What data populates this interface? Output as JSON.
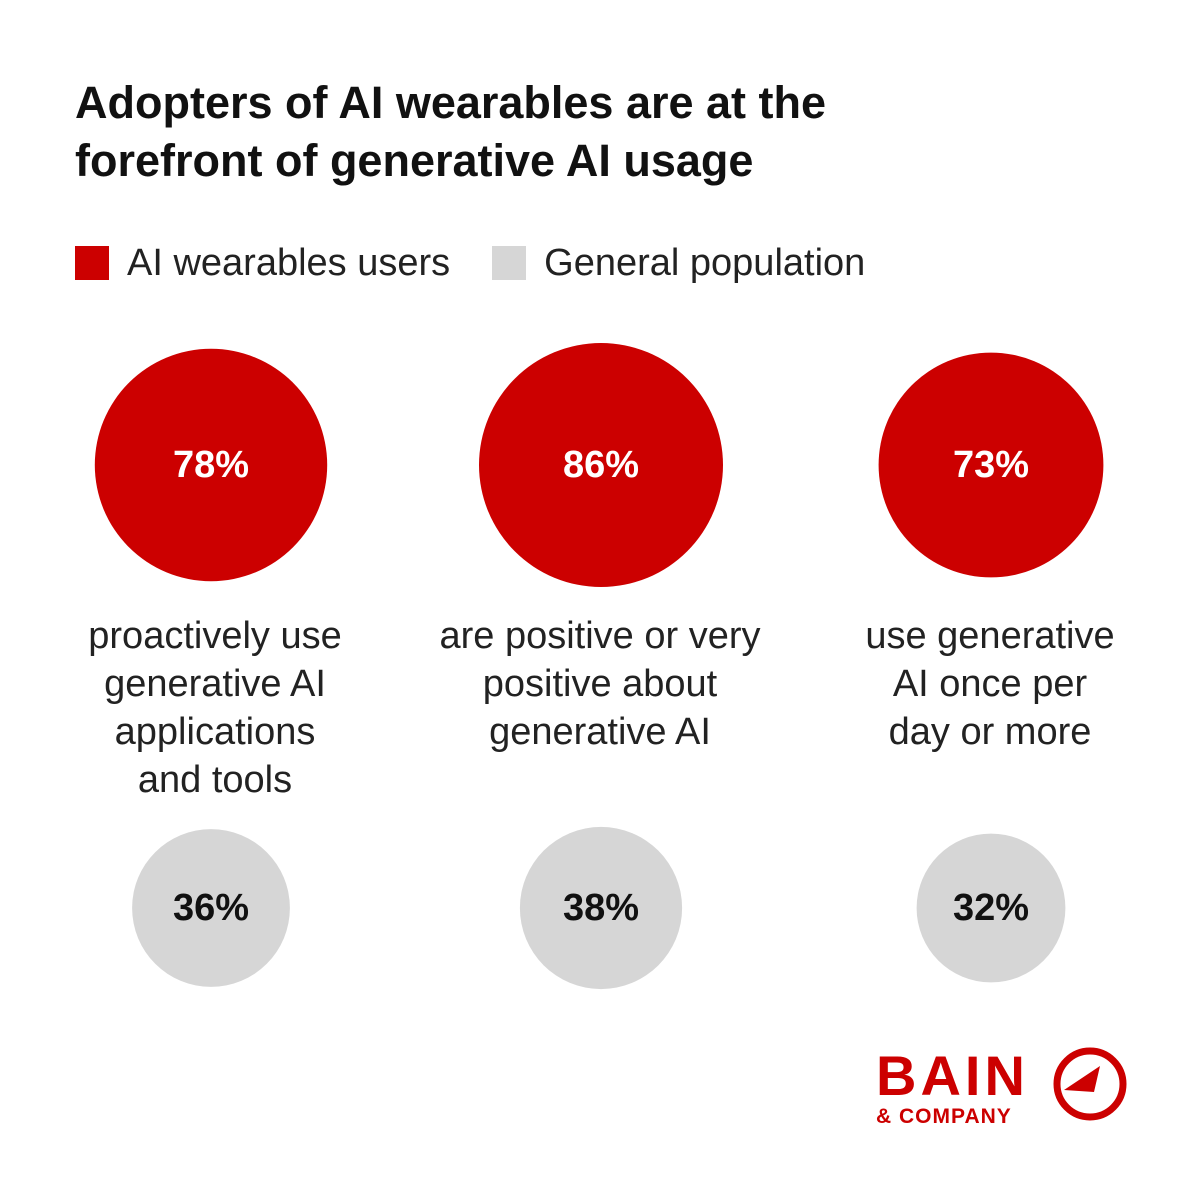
{
  "title_lines": [
    "Adopters of AI wearables are at the",
    "forefront of generative AI usage"
  ],
  "legend": [
    {
      "label": "AI wearables users",
      "color": "#cc0000"
    },
    {
      "label": "General population",
      "color": "#d6d6d6"
    }
  ],
  "chart_data": {
    "type": "bubble",
    "title": "Adopters of AI wearables are at the forefront of generative AI usage",
    "unit": "%",
    "series": [
      {
        "name": "AI wearables users",
        "color": "#cc0000",
        "values": [
          78,
          86,
          73
        ],
        "labels": [
          "78%",
          "86%",
          "73%"
        ]
      },
      {
        "name": "General population",
        "color": "#d6d6d6",
        "values": [
          36,
          38,
          32
        ],
        "labels": [
          "36%",
          "38%",
          "32%"
        ]
      }
    ],
    "categories": [
      {
        "lines": [
          "proactively use",
          "generative AI",
          "applications",
          "and tools"
        ]
      },
      {
        "lines": [
          "are positive or very",
          "positive about",
          "generative AI"
        ]
      },
      {
        "lines": [
          "use generative",
          "AI once per",
          "day or more"
        ]
      }
    ]
  },
  "logo": {
    "wordmark": "BAIN",
    "sub": "& COMPANY",
    "color": "#cc0000",
    "icon": "compass-icon"
  }
}
